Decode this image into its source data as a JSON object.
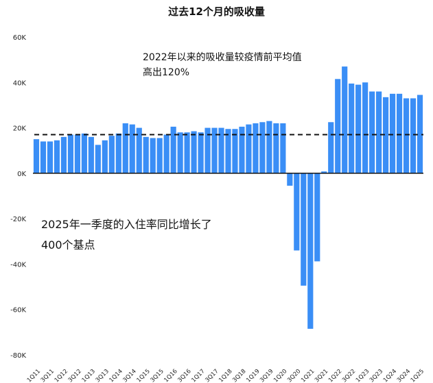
{
  "chart_data": {
    "type": "bar",
    "title": "过去12个月的吸收量",
    "color": "#3a8ef6",
    "reference_line": {
      "value": 17000,
      "style": "dashed",
      "color": "#111111"
    },
    "ylim": [
      -80000,
      60000
    ],
    "yticks": [
      {
        "value": 60000,
        "label": "60K"
      },
      {
        "value": 40000,
        "label": "40K"
      },
      {
        "value": 20000,
        "label": "20K"
      },
      {
        "value": 0,
        "label": "0K"
      },
      {
        "value": -20000,
        "label": "-20K"
      },
      {
        "value": -40000,
        "label": "-40K"
      },
      {
        "value": -60000,
        "label": "-60K"
      },
      {
        "value": -80000,
        "label": "-80K"
      }
    ],
    "categories": [
      "1Q11",
      "2Q11",
      "3Q11",
      "4Q11",
      "1Q12",
      "2Q12",
      "3Q12",
      "4Q12",
      "1Q13",
      "2Q13",
      "3Q13",
      "4Q13",
      "1Q14",
      "2Q14",
      "3Q14",
      "4Q14",
      "1Q15",
      "2Q15",
      "3Q15",
      "4Q15",
      "1Q16",
      "2Q16",
      "3Q16",
      "4Q16",
      "1Q17",
      "2Q17",
      "3Q17",
      "4Q17",
      "1Q18",
      "2Q18",
      "3Q18",
      "4Q18",
      "1Q19",
      "2Q19",
      "3Q19",
      "4Q19",
      "1Q20",
      "2Q20",
      "3Q20",
      "4Q20",
      "1Q21",
      "2Q21",
      "3Q21",
      "4Q21",
      "1Q22",
      "2Q22",
      "3Q22",
      "4Q22",
      "1Q23",
      "2Q23",
      "3Q23",
      "4Q23",
      "1Q24",
      "2Q24",
      "3Q24",
      "4Q24",
      "1Q25"
    ],
    "values": [
      15000,
      14000,
      14000,
      14500,
      16000,
      17000,
      17000,
      17500,
      16000,
      12500,
      14500,
      16500,
      17500,
      22000,
      21500,
      20000,
      16000,
      15500,
      15500,
      17000,
      20500,
      18000,
      18000,
      18500,
      18000,
      20000,
      20000,
      20000,
      19500,
      19500,
      20500,
      21500,
      22000,
      22500,
      23000,
      22000,
      22000,
      -5500,
      -34000,
      -49500,
      -68500,
      -38800,
      800,
      22500,
      41500,
      47000,
      39500,
      39000,
      40000,
      36000,
      36000,
      33500,
      35000,
      35000,
      33000,
      33000,
      34500
    ],
    "xtick_labels": [
      "1Q11",
      "3Q11",
      "1Q12",
      "3Q12",
      "1Q13",
      "3Q13",
      "1Q14",
      "3Q14",
      "1Q15",
      "3Q15",
      "1Q16",
      "3Q16",
      "1Q17",
      "3Q17",
      "1Q18",
      "3Q18",
      "1Q19",
      "3Q19",
      "1Q20",
      "3Q20",
      "1Q21",
      "3Q21",
      "1Q22",
      "3Q22",
      "1Q23",
      "3Q23",
      "1Q24",
      "3Q24",
      "1Q25"
    ],
    "annotations": [
      {
        "line1": "2022年以来的吸收量较疫情前平均值",
        "line2": "高出120%"
      },
      {
        "line1": "2025年一季度的入住率同比增长了",
        "line2": "400个基点"
      }
    ]
  }
}
